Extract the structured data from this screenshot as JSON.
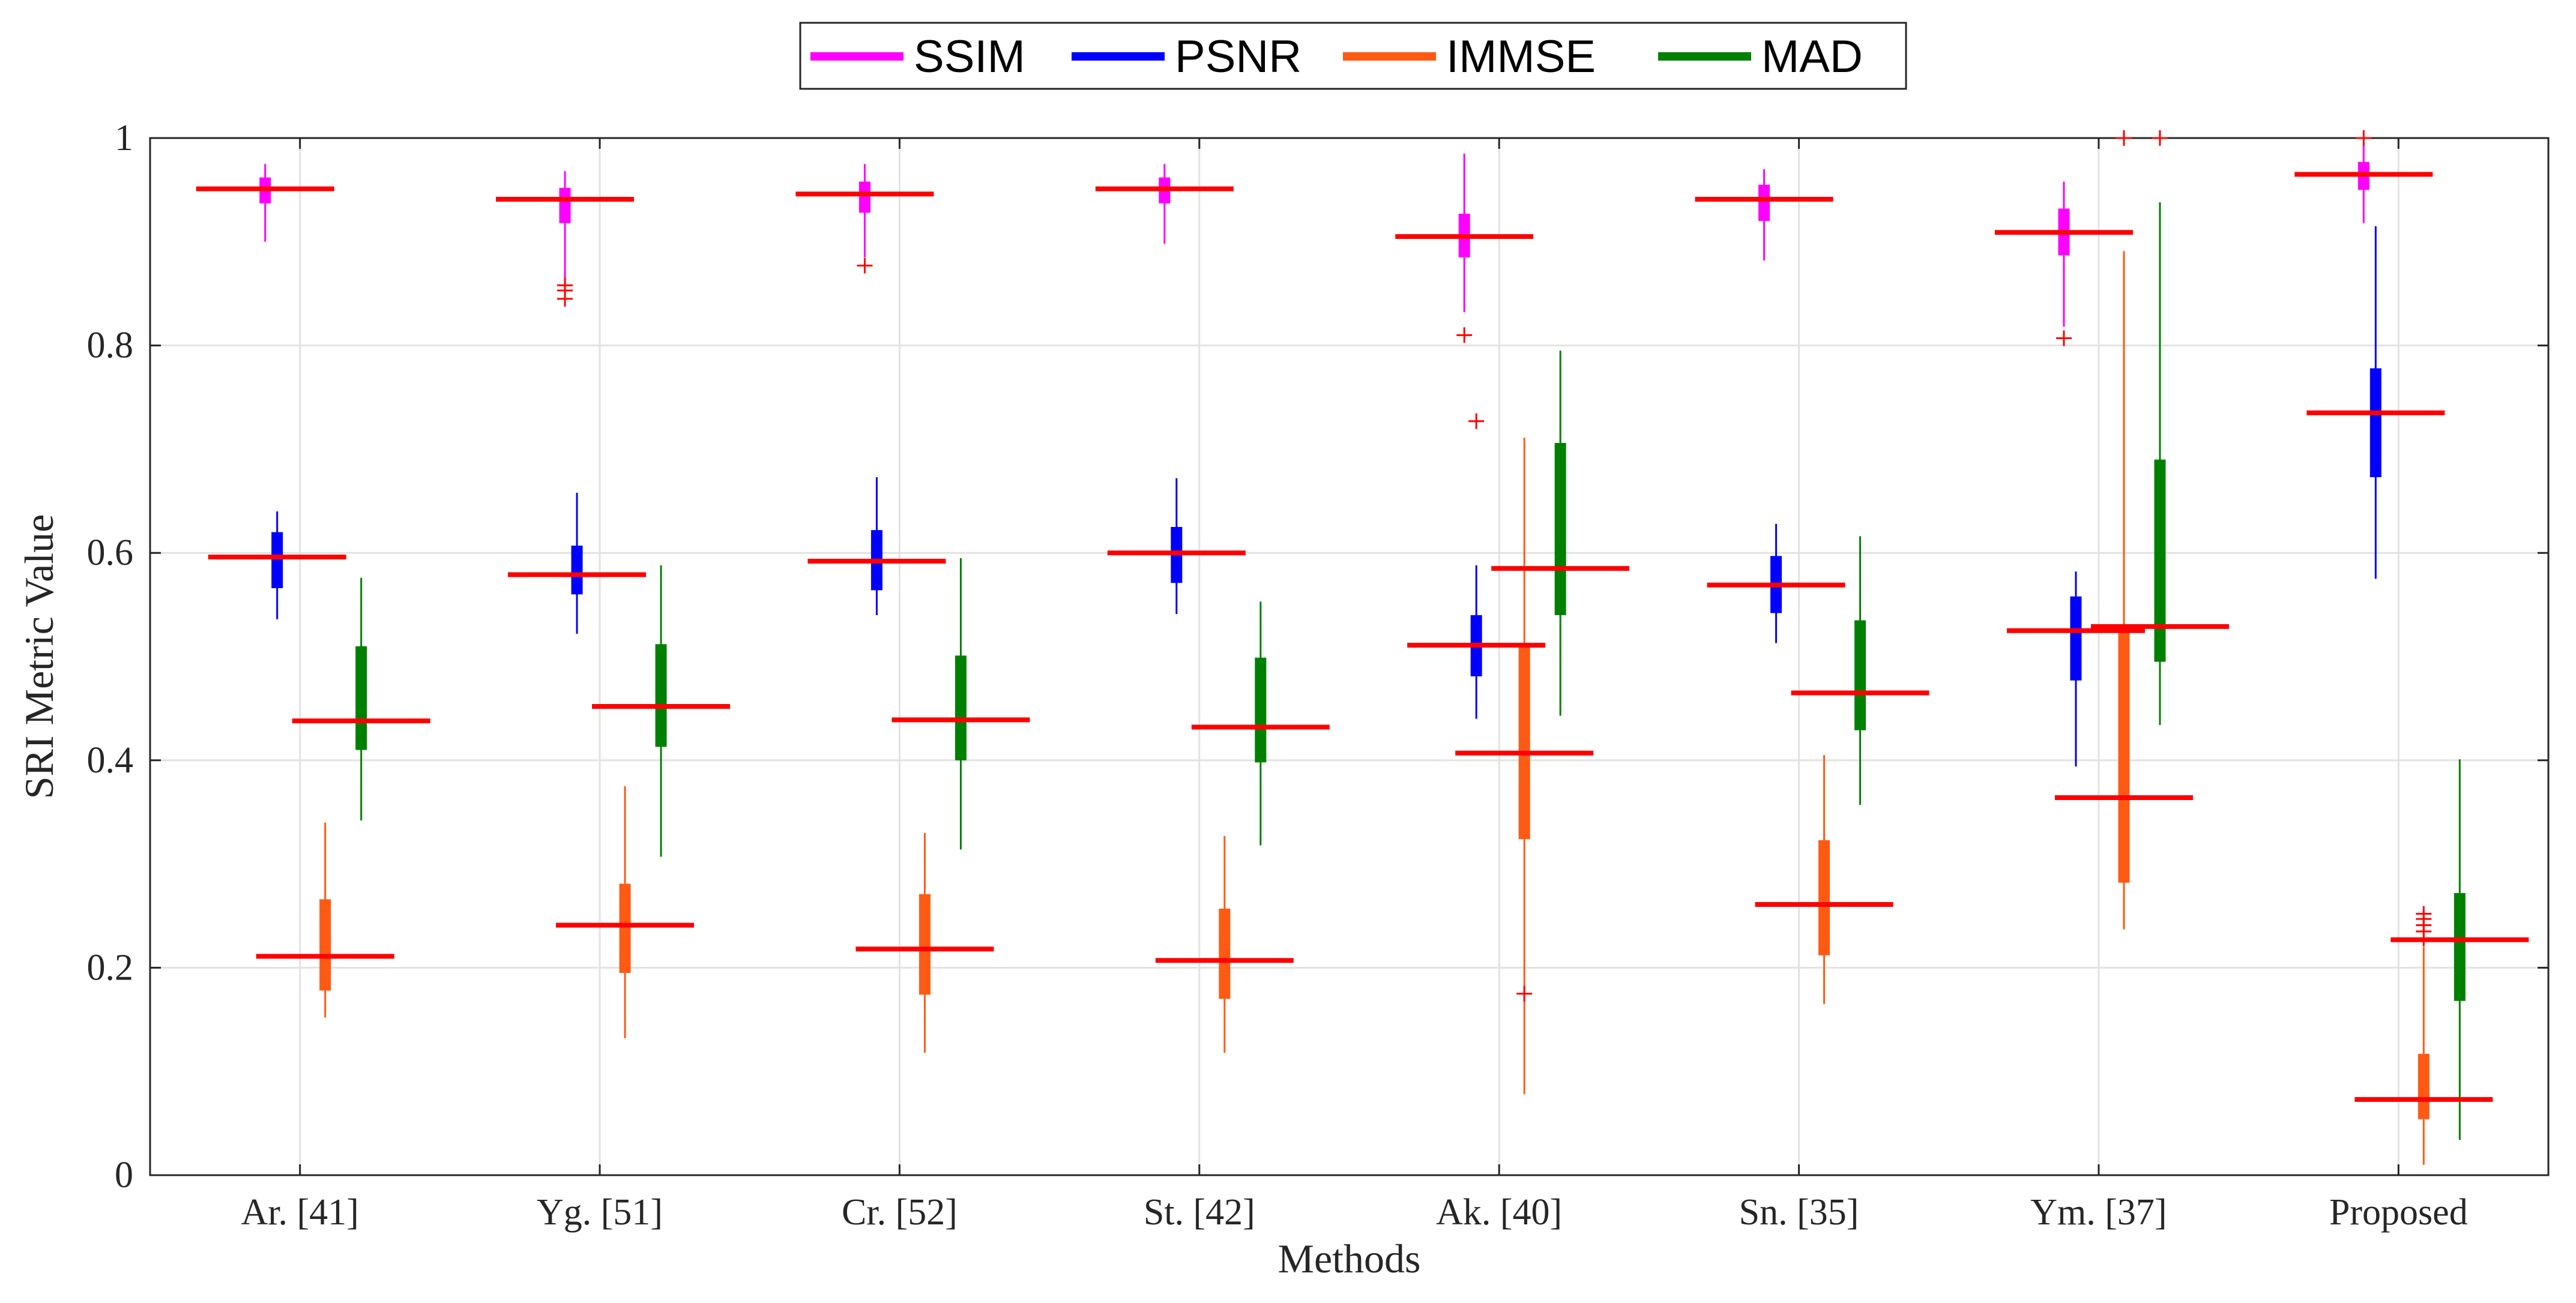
{
  "chart_data": {
    "type": "box",
    "title": "",
    "xlabel": "Methods",
    "ylabel": "SRI Metric Value",
    "ylim": [
      0,
      1
    ],
    "yticks": [
      0,
      0.2,
      0.4,
      0.6,
      0.8,
      1
    ],
    "ytick_labels": [
      "0",
      "0.2",
      "0.4",
      "0.6",
      "0.8",
      "1"
    ],
    "grid": true,
    "legend_position": "top-center",
    "categories": [
      "Ar. [41]",
      "Yg. [51]",
      "Cr. [52]",
      "St. [42]",
      "Ak. [40]",
      "Sn. [35]",
      "Ym. [37]",
      "Proposed"
    ],
    "median_color": "#ff0000",
    "outlier_color": "#ff0000",
    "series": [
      {
        "name": "SSIM",
        "color": "#ff00ff",
        "boxes": [
          {
            "wl": 0.9,
            "q1": 0.937,
            "med": 0.951,
            "q3": 0.962,
            "wh": 0.975,
            "outliers": []
          },
          {
            "wl": 0.862,
            "q1": 0.918,
            "med": 0.941,
            "q3": 0.952,
            "wh": 0.968,
            "outliers": [
              0.858,
              0.853,
              0.845
            ]
          },
          {
            "wl": 0.885,
            "q1": 0.928,
            "med": 0.946,
            "q3": 0.958,
            "wh": 0.975,
            "outliers": [
              0.877
            ]
          },
          {
            "wl": 0.898,
            "q1": 0.937,
            "med": 0.951,
            "q3": 0.962,
            "wh": 0.975,
            "outliers": []
          },
          {
            "wl": 0.832,
            "q1": 0.885,
            "med": 0.905,
            "q3": 0.927,
            "wh": 0.985,
            "outliers": [
              0.81
            ]
          },
          {
            "wl": 0.882,
            "q1": 0.92,
            "med": 0.941,
            "q3": 0.955,
            "wh": 0.97,
            "outliers": []
          },
          {
            "wl": 0.818,
            "q1": 0.887,
            "med": 0.909,
            "q3": 0.932,
            "wh": 0.958,
            "outliers": [
              0.807
            ]
          },
          {
            "wl": 0.918,
            "q1": 0.95,
            "med": 0.965,
            "q3": 0.977,
            "wh": 0.995,
            "outliers": [
              1.0
            ]
          }
        ]
      },
      {
        "name": "PSNR",
        "color": "#0000ff",
        "boxes": [
          {
            "wl": 0.536,
            "q1": 0.566,
            "med": 0.596,
            "q3": 0.62,
            "wh": 0.64,
            "outliers": []
          },
          {
            "wl": 0.522,
            "q1": 0.56,
            "med": 0.579,
            "q3": 0.607,
            "wh": 0.658,
            "outliers": []
          },
          {
            "wl": 0.54,
            "q1": 0.564,
            "med": 0.592,
            "q3": 0.622,
            "wh": 0.673,
            "outliers": []
          },
          {
            "wl": 0.541,
            "q1": 0.571,
            "med": 0.6,
            "q3": 0.625,
            "wh": 0.672,
            "outliers": []
          },
          {
            "wl": 0.44,
            "q1": 0.481,
            "med": 0.511,
            "q3": 0.54,
            "wh": 0.588,
            "outliers": [
              0.727
            ]
          },
          {
            "wl": 0.513,
            "q1": 0.542,
            "med": 0.569,
            "q3": 0.597,
            "wh": 0.628,
            "outliers": []
          },
          {
            "wl": 0.394,
            "q1": 0.477,
            "med": 0.525,
            "q3": 0.558,
            "wh": 0.582,
            "outliers": []
          },
          {
            "wl": 0.575,
            "q1": 0.673,
            "med": 0.735,
            "q3": 0.778,
            "wh": 0.915,
            "outliers": []
          }
        ]
      },
      {
        "name": "IMMSE",
        "color": "#ff5a14",
        "boxes": [
          {
            "wl": 0.152,
            "q1": 0.178,
            "med": 0.211,
            "q3": 0.266,
            "wh": 0.34,
            "outliers": []
          },
          {
            "wl": 0.132,
            "q1": 0.195,
            "med": 0.241,
            "q3": 0.281,
            "wh": 0.375,
            "outliers": []
          },
          {
            "wl": 0.118,
            "q1": 0.174,
            "med": 0.218,
            "q3": 0.271,
            "wh": 0.33,
            "outliers": []
          },
          {
            "wl": 0.118,
            "q1": 0.17,
            "med": 0.207,
            "q3": 0.257,
            "wh": 0.327,
            "outliers": []
          },
          {
            "wl": 0.078,
            "q1": 0.324,
            "med": 0.407,
            "q3": 0.512,
            "wh": 0.711,
            "outliers": [
              0.175
            ]
          },
          {
            "wl": 0.165,
            "q1": 0.212,
            "med": 0.261,
            "q3": 0.323,
            "wh": 0.405,
            "outliers": []
          },
          {
            "wl": 0.237,
            "q1": 0.282,
            "med": 0.364,
            "q3": 0.531,
            "wh": 0.891,
            "outliers": [
              1.0
            ]
          },
          {
            "wl": 0.01,
            "q1": 0.054,
            "med": 0.073,
            "q3": 0.117,
            "wh": 0.22,
            "outliers": [
              0.252,
              0.247,
              0.241,
              0.235,
              0.228
            ]
          }
        ]
      },
      {
        "name": "MAD",
        "color": "#008000",
        "boxes": [
          {
            "wl": 0.342,
            "q1": 0.41,
            "med": 0.438,
            "q3": 0.51,
            "wh": 0.576,
            "outliers": []
          },
          {
            "wl": 0.307,
            "q1": 0.413,
            "med": 0.452,
            "q3": 0.512,
            "wh": 0.588,
            "outliers": []
          },
          {
            "wl": 0.314,
            "q1": 0.4,
            "med": 0.439,
            "q3": 0.501,
            "wh": 0.595,
            "outliers": []
          },
          {
            "wl": 0.318,
            "q1": 0.398,
            "med": 0.432,
            "q3": 0.499,
            "wh": 0.553,
            "outliers": []
          },
          {
            "wl": 0.443,
            "q1": 0.54,
            "med": 0.585,
            "q3": 0.706,
            "wh": 0.795,
            "outliers": []
          },
          {
            "wl": 0.357,
            "q1": 0.429,
            "med": 0.465,
            "q3": 0.535,
            "wh": 0.616,
            "outliers": []
          },
          {
            "wl": 0.434,
            "q1": 0.495,
            "med": 0.529,
            "q3": 0.69,
            "wh": 0.938,
            "outliers": [
              1.0
            ]
          },
          {
            "wl": 0.034,
            "q1": 0.168,
            "med": 0.227,
            "q3": 0.272,
            "wh": 0.401,
            "outliers": []
          }
        ]
      }
    ]
  }
}
